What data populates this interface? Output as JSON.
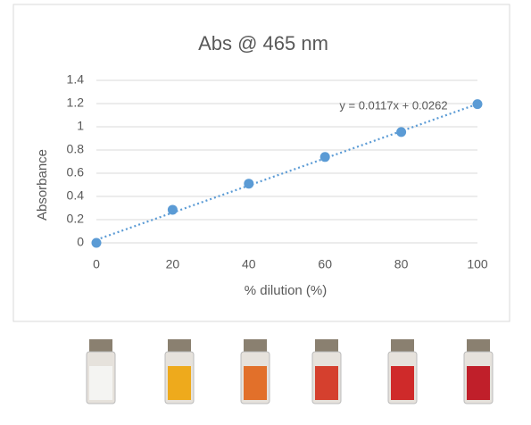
{
  "chart_data": {
    "type": "scatter",
    "title": "Abs @  465 nm",
    "x_label": "% dilution (%)",
    "y_label": "Absorbance",
    "series": [
      {
        "color": "#5b9bd5",
        "x": [
          0,
          20,
          40,
          60,
          80,
          100
        ],
        "values": [
          0,
          0.285,
          0.51,
          0.74,
          0.955,
          1.195
        ]
      }
    ],
    "trendline": {
      "label": "y = 0.0117x + 0.0262",
      "slope": 0.0117,
      "intercept": 0.0262
    },
    "xlim": [
      0,
      100
    ],
    "xticks": [
      0,
      20,
      40,
      60,
      80,
      100
    ],
    "ylim": [
      0,
      1.4
    ],
    "yticks": [
      0,
      0.2,
      0.4,
      0.6,
      0.8,
      1,
      1.2,
      1.4
    ],
    "grid": true
  }
}
